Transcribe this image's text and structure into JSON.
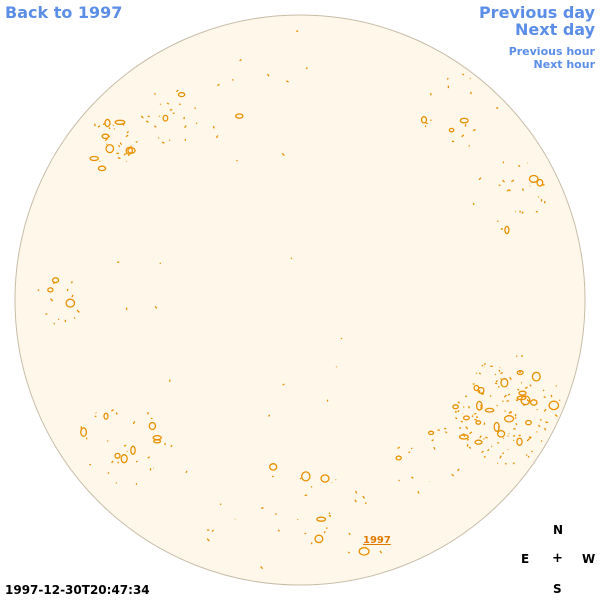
{
  "nav": {
    "back": "Back to 1997",
    "previous_day": "Previous day",
    "next_day": "Next day",
    "previous_hour": "Previous hour",
    "next_hour": "Next hour"
  },
  "compass": {
    "north": "N",
    "east": "E",
    "center": "+",
    "west": "W",
    "south": "S"
  },
  "timestamp": "1997-12-30T20:47:34",
  "disk_tag": "1997",
  "colors": {
    "disk_fill": "#fff8ea",
    "disk_edge": "#c8bca8",
    "feature": "#e89000",
    "link": "#5b8ee6"
  }
}
